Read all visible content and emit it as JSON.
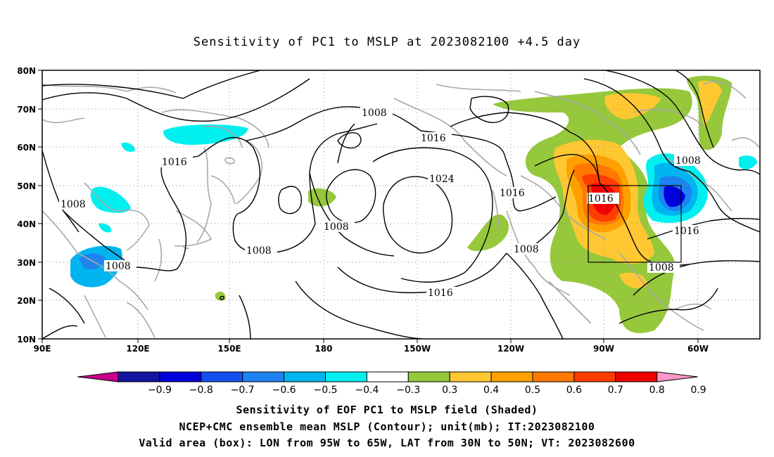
{
  "title": "Sensitivity of PC1 to MSLP at 2023082100 +4.5 day",
  "lat_labels": [
    "80N",
    "70N",
    "60N",
    "50N",
    "40N",
    "30N",
    "20N",
    "10N"
  ],
  "lon_labels": [
    "90E",
    "120E",
    "150E",
    "180",
    "150W",
    "120W",
    "90W",
    "60W"
  ],
  "contour_labels": [
    "1008",
    "1016",
    "1008",
    "1008",
    "1008",
    "1016",
    "1008",
    "1024",
    "1016",
    "1016",
    "1016",
    "1008",
    "1008",
    "1016",
    "1016",
    "1008"
  ],
  "colorbar": {
    "colors": [
      "#c8008c",
      "#1414a0",
      "#0000dc",
      "#1450f0",
      "#1e82f0",
      "#00b4f0",
      "#00f0f0",
      "#ffffff",
      "#96c83c",
      "#ffc832",
      "#ffa000",
      "#ff7800",
      "#ff3c00",
      "#f00000",
      "#ff96c8"
    ],
    "labels": [
      "-0.9",
      "-0.8",
      "-0.7",
      "-0.6",
      "-0.5",
      "-0.4",
      "-0.3",
      "0.3",
      "0.4",
      "0.5",
      "0.6",
      "0.7",
      "0.8",
      "0.9"
    ]
  },
  "footer": [
    "Sensitivity of EOF PC1 to MSLP field (Shaded)",
    "NCEP+CMC ensemble mean MSLP (Contour); unit(mb); IT:2023082100",
    "Valid area (box): LON from 95W to 65W, LAT from 30N to 50N; VT: 2023082600"
  ]
}
